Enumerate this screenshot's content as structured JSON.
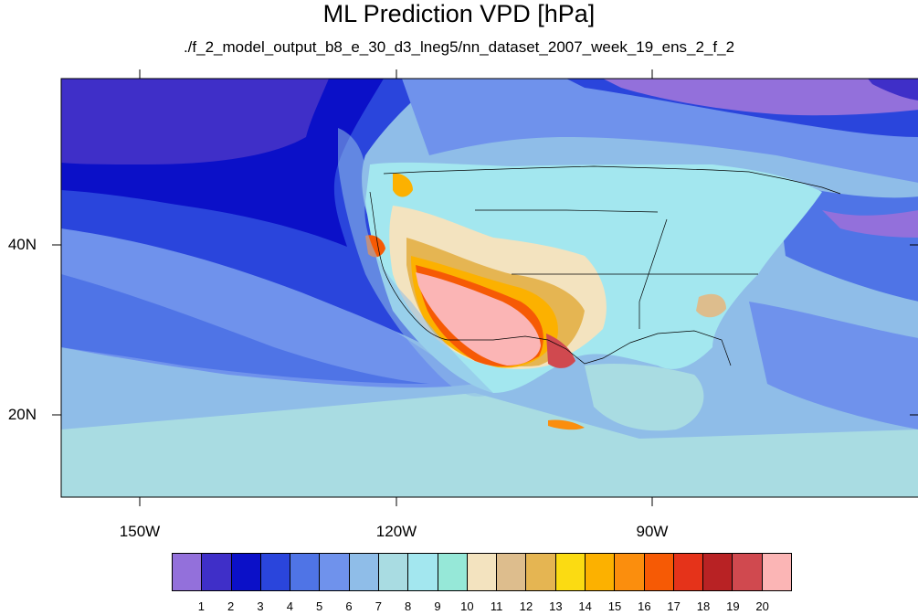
{
  "title": "ML Prediction VPD [hPa]",
  "subtitle": "./f_2_model_output_b8_e_30_d3_lneg5/nn_dataset_2007_week_19_ens_2_f_2",
  "lon_labels": [
    "150W",
    "120W",
    "90W"
  ],
  "lat_labels": [
    "40N",
    "20N"
  ],
  "colorbar": {
    "labels": [
      "1",
      "2",
      "3",
      "4",
      "5",
      "6",
      "7",
      "8",
      "9",
      "10",
      "11",
      "12",
      "13",
      "14",
      "15",
      "16",
      "17",
      "18",
      "19",
      "20"
    ],
    "colors": [
      "#9370db",
      "#3f2fc8",
      "#0b10c8",
      "#2a45dc",
      "#4f74e6",
      "#6f92ec",
      "#8fbde8",
      "#a9dce2",
      "#a3e7ef",
      "#96e8d8",
      "#f3e3bf",
      "#ddbd8d",
      "#e5b552",
      "#fbdb12",
      "#fcb100",
      "#fb8e0d",
      "#f65a05",
      "#e5331a",
      "#b82224",
      "#d0494f",
      "#fbb5b5"
    ]
  }
}
